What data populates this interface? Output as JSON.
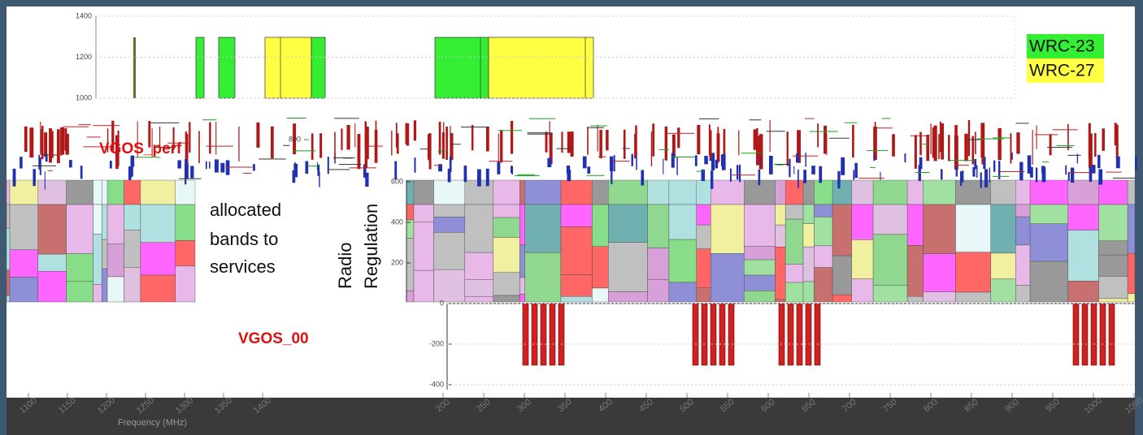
{
  "top_panel": {
    "yticks": [
      1000,
      1200,
      1400
    ],
    "legend": [
      {
        "name": "WRC-23",
        "color": "#33ee33"
      },
      {
        "name": "WRC-27",
        "color": "#ffff44"
      }
    ]
  },
  "middle_panel": {
    "yticks": [
      800
    ]
  },
  "right_panel": {
    "yticks": [
      600,
      400,
      200,
      0,
      -200,
      -400
    ]
  },
  "annotations": {
    "vgos_perf": "VGOS_perf",
    "vgos_00": "VGOS_00",
    "allocated": [
      "allocated",
      "bands to",
      "services"
    ],
    "radio_regulation": [
      "Radio",
      "Regulation"
    ]
  },
  "x_axis": {
    "label": "Frequency (MHz)",
    "left_ticks": [
      1100,
      1150,
      1200,
      1250,
      1300,
      1350,
      1400
    ],
    "right_ticks": [
      200,
      250,
      300,
      350,
      400,
      450,
      500,
      550,
      600,
      650,
      700,
      750,
      800,
      850,
      900,
      950,
      1000,
      1050
    ]
  }
}
